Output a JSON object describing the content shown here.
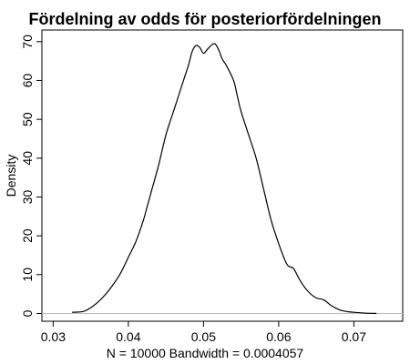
{
  "chart_data": {
    "type": "line",
    "title": "Fördelning av odds för posteriorfördelningen",
    "xlabel": "N = 10000   Bandwidth = 0.0004057",
    "ylabel": "Density",
    "xlim": [
      0.0285,
      0.0765
    ],
    "ylim": [
      -2,
      73
    ],
    "x_ticks": [
      0.03,
      0.04,
      0.05,
      0.06,
      0.07
    ],
    "x_tick_labels": [
      "0.03",
      "0.04",
      "0.05",
      "0.06",
      "0.07"
    ],
    "y_ticks": [
      0,
      10,
      20,
      30,
      40,
      50,
      60,
      70
    ],
    "y_tick_labels": [
      "0",
      "10",
      "20",
      "30",
      "40",
      "50",
      "60",
      "70"
    ],
    "grid": false,
    "zero_line": true,
    "line_color": "#000000",
    "zero_line_color": "#bebebe",
    "series": [
      {
        "x": [
          0.0325,
          0.034,
          0.035,
          0.036,
          0.037,
          0.038,
          0.039,
          0.04,
          0.041,
          0.042,
          0.0425,
          0.043,
          0.044,
          0.045,
          0.046,
          0.047,
          0.048,
          0.0485,
          0.049,
          0.0495,
          0.05,
          0.0505,
          0.051,
          0.0515,
          0.052,
          0.0525,
          0.053,
          0.054,
          0.0545,
          0.055,
          0.056,
          0.057,
          0.058,
          0.059,
          0.06,
          0.061,
          0.0615,
          0.062,
          0.063,
          0.064,
          0.065,
          0.066,
          0.067,
          0.068,
          0.069,
          0.07,
          0.0715,
          0.073
        ],
        "y": [
          0.3,
          0.5,
          1.5,
          3.0,
          5.0,
          7.5,
          10.5,
          14.5,
          18.5,
          24.0,
          27.5,
          31.0,
          38.0,
          46.0,
          52.0,
          58.0,
          64.0,
          67.5,
          69.0,
          68.5,
          67.0,
          68.0,
          69.0,
          69.5,
          68.0,
          65.5,
          64.0,
          60.0,
          56.0,
          52.0,
          46.0,
          40.0,
          32.0,
          24.0,
          18.0,
          13.0,
          12.0,
          11.5,
          8.0,
          5.5,
          4.0,
          3.5,
          2.0,
          1.0,
          0.5,
          0.3,
          0.1,
          0.0
        ]
      }
    ]
  }
}
